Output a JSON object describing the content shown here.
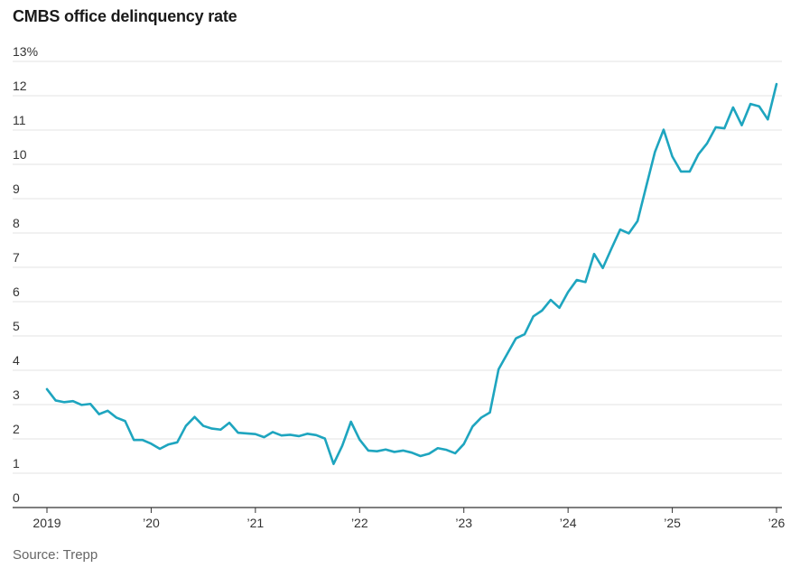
{
  "title": "CMBS office delinquency rate",
  "source": "Source: Trepp",
  "colors": {
    "line": "#1ea5bf",
    "grid": "#e3e3e3",
    "axis": "#333333"
  },
  "chart_data": {
    "type": "line",
    "title": "CMBS office delinquency rate",
    "xlabel": "",
    "ylabel": "",
    "ylim": [
      0,
      13
    ],
    "xlim": [
      2019.0,
      2026.0
    ],
    "grid": true,
    "yticks": [
      {
        "value": 13,
        "label": "13%"
      },
      {
        "value": 12,
        "label": "12"
      },
      {
        "value": 11,
        "label": "11"
      },
      {
        "value": 10,
        "label": "10"
      },
      {
        "value": 9,
        "label": "9"
      },
      {
        "value": 8,
        "label": "8"
      },
      {
        "value": 7,
        "label": "7"
      },
      {
        "value": 6,
        "label": "6"
      },
      {
        "value": 5,
        "label": "5"
      },
      {
        "value": 4,
        "label": "4"
      },
      {
        "value": 3,
        "label": "3"
      },
      {
        "value": 2,
        "label": "2"
      },
      {
        "value": 1,
        "label": "1"
      },
      {
        "value": 0,
        "label": "0"
      }
    ],
    "xticks": [
      {
        "value": 2019,
        "label": "2019"
      },
      {
        "value": 2020,
        "label": "’20"
      },
      {
        "value": 2021,
        "label": "’21"
      },
      {
        "value": 2022,
        "label": "’22"
      },
      {
        "value": 2023,
        "label": "’23"
      },
      {
        "value": 2024,
        "label": "’24"
      },
      {
        "value": 2025,
        "label": "’25"
      },
      {
        "value": 2026,
        "label": "’26"
      }
    ],
    "series": [
      {
        "name": "CMBS office delinquency rate",
        "unit": "%",
        "values": [
          3.45,
          3.12,
          3.07,
          3.1,
          2.99,
          3.02,
          2.72,
          2.82,
          2.62,
          2.52,
          1.97,
          1.97,
          1.86,
          1.71,
          1.84,
          1.9,
          2.38,
          2.64,
          2.38,
          2.3,
          2.27,
          2.47,
          2.18,
          2.16,
          2.14,
          2.05,
          2.2,
          2.1,
          2.12,
          2.08,
          2.15,
          2.11,
          2.01,
          1.27,
          1.8,
          2.5,
          1.98,
          1.66,
          1.64,
          1.69,
          1.62,
          1.66,
          1.6,
          1.5,
          1.57,
          1.73,
          1.68,
          1.58,
          1.85,
          2.36,
          2.62,
          2.77,
          4.03,
          4.48,
          4.93,
          5.05,
          5.57,
          5.74,
          6.05,
          5.82,
          6.28,
          6.63,
          6.57,
          7.39,
          6.98,
          7.55,
          8.1,
          7.99,
          8.35,
          9.36,
          10.36,
          11.01,
          10.23,
          9.79,
          9.79,
          10.29,
          10.61,
          11.08,
          11.05,
          11.66,
          11.14,
          11.76,
          11.69,
          11.31,
          12.34
        ]
      }
    ]
  }
}
